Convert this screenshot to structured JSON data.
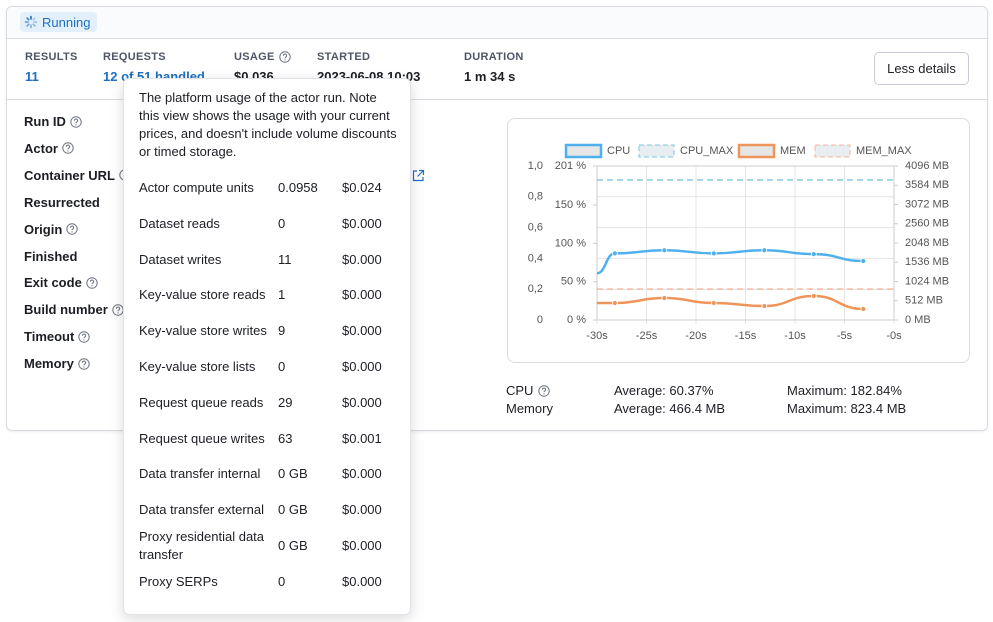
{
  "status": "Running",
  "stats": [
    {
      "label": "RESULTS",
      "value": "11"
    },
    {
      "label": "REQUESTS",
      "value": "12 of 51 handled"
    },
    {
      "label": "USAGE",
      "value": "$0.036"
    },
    {
      "label": "STARTED",
      "value": "2023-06-08 10:03"
    },
    {
      "label": "DURATION",
      "value": "1 m 34 s"
    }
  ],
  "button": "Less details",
  "details": [
    "Run ID",
    "Actor",
    "Container URL",
    "Resurrected",
    "Origin",
    "Finished",
    "Exit code",
    "Build number",
    "Timeout",
    "Memory"
  ],
  "tooltip": {
    "text": "The platform usage of the actor run. Note this view shows the usage with your current prices, and doesn't include volume discounts or timed storage.",
    "rows": [
      [
        "Actor compute units",
        "0.0958",
        "$0.024"
      ],
      [
        "Dataset reads",
        "0",
        "$0.000"
      ],
      [
        "Dataset writes",
        "11",
        "$0.000"
      ],
      [
        "Key-value store reads",
        "1",
        "$0.000"
      ],
      [
        "Key-value store writes",
        "9",
        "$0.000"
      ],
      [
        "Key-value store lists",
        "0",
        "$0.000"
      ],
      [
        "Request queue reads",
        "29",
        "$0.000"
      ],
      [
        "Request queue writes",
        "63",
        "$0.001"
      ],
      [
        "Data transfer internal",
        "0 GB",
        "$0.000"
      ],
      [
        "Data transfer external",
        "0 GB",
        "$0.000"
      ],
      [
        "Proxy residential data transfer",
        "0 GB",
        "$0.000"
      ],
      [
        "Proxy SERPs",
        "0",
        "$0.000"
      ]
    ]
  },
  "chart_data": {
    "type": "line",
    "x": [
      -30,
      -28.2,
      -23.2,
      -18.2,
      -13.1,
      -8.1,
      -3.1
    ],
    "xlim": [
      -30,
      0
    ],
    "xticks": [
      {
        "value": -30,
        "label": "-30s"
      },
      {
        "value": -25,
        "label": "-25s"
      },
      {
        "value": -20,
        "label": "-20s"
      },
      {
        "value": -15,
        "label": "-15s"
      },
      {
        "value": -10,
        "label": "-10s"
      },
      {
        "value": -5,
        "label": "-5s"
      },
      {
        "value": 0,
        "label": "-0s"
      }
    ],
    "y0lim": [
      0,
      1
    ],
    "y0ticks": [
      0,
      {
        "value": 0.2,
        "label": "0,2"
      },
      {
        "value": 0.4,
        "label": "0,4"
      },
      {
        "value": 0.6,
        "label": "0,6"
      },
      {
        "value": 0.8,
        "label": "0,8"
      },
      {
        "value": 1,
        "label": "1,0"
      }
    ],
    "ylim": [
      0,
      201
    ],
    "yticks": [
      {
        "value": 0,
        "label": "0 %"
      },
      {
        "value": 50,
        "label": "50 %"
      },
      {
        "value": 100,
        "label": "100 %"
      },
      {
        "value": 150,
        "label": "150 %"
      },
      {
        "value": 201,
        "label": "201 %"
      }
    ],
    "y2lim": [
      0,
      4096
    ],
    "y2ticks": [
      {
        "value": 0,
        "label": "0 MB"
      },
      {
        "value": 512,
        "label": "512 MB"
      },
      {
        "value": 1024,
        "label": "1024 MB"
      },
      {
        "value": 1536,
        "label": "1536 MB"
      },
      {
        "value": 2048,
        "label": "2048 MB"
      },
      {
        "value": 2560,
        "label": "2560 MB"
      },
      {
        "value": 3072,
        "label": "3072 MB"
      },
      {
        "value": 3584,
        "label": "3584 MB"
      },
      {
        "value": 4096,
        "label": "4096 MB"
      }
    ],
    "grid": true,
    "series": [
      {
        "name": "CPU",
        "color": "#4fb0ee",
        "values": [
          61,
          87,
          91,
          87,
          91,
          86,
          77
        ]
      },
      {
        "name": "CPU_MAX",
        "color": "#7cc6dc",
        "value": 182.84,
        "dashed": true
      },
      {
        "name": "MEM",
        "color": "#f0955a",
        "values": [
          452,
          452,
          585,
          452,
          372,
          638,
          293
        ],
        "axis": "y2"
      },
      {
        "name": "MEM_MAX",
        "color": "#f5b49a",
        "value": 823.4,
        "dashed": true,
        "axis": "y2"
      }
    ]
  },
  "summary": [
    [
      "CPU",
      "Average: 60.37%",
      "Maximum: 182.84%"
    ],
    [
      "Memory",
      "Average: 466.4 MB",
      "Maximum: 823.4 MB"
    ]
  ]
}
